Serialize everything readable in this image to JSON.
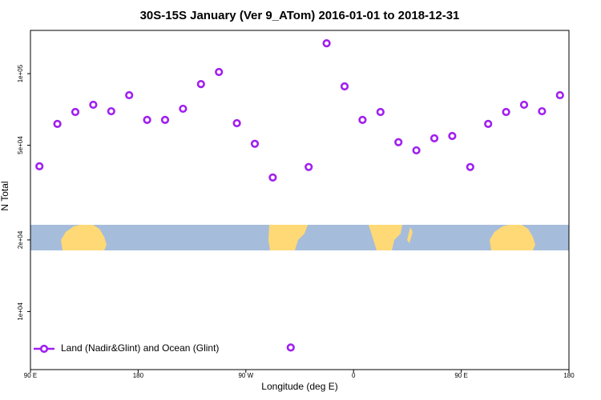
{
  "chart_data": {
    "type": "scatter",
    "title": "30S-15S January (Ver 9_ATom)   2016-01-01 to 2018-12-31",
    "x_label": "Longitude (deg E)",
    "y_label": "N Total",
    "xlim": [
      90,
      540
    ],
    "xticks": [
      {
        "value": 90,
        "label": "90 E"
      },
      180,
      {
        "value": 270,
        "label": "90 W"
      },
      {
        "value": 360,
        "label": "0"
      },
      {
        "value": 450,
        "label": "90 E"
      },
      {
        "value": 540,
        "label": "180"
      }
    ],
    "ylim": [
      5700,
      152000
    ],
    "yscale": "log",
    "yticks": [
      {
        "value": 10000,
        "label": "1e+04"
      },
      {
        "value": 20000,
        "label": "2e+04"
      },
      {
        "value": 50000,
        "label": "5e+04"
      },
      {
        "value": 100000,
        "label": "1e+05"
      }
    ],
    "legend_position": "bottom-left",
    "series": [
      {
        "name": "Land (Nadir&Glint) and Ocean (Glint)",
        "color": "#a020f0",
        "x": [
          97.5,
          112.5,
          127.5,
          142.5,
          157.5,
          172.5,
          187.5,
          202.5,
          217.5,
          232.5,
          247.5,
          262.5,
          277.5,
          292.5,
          307.5,
          322.5,
          337.5,
          352.5,
          367.5,
          382.5,
          397.5,
          412.5,
          427.5,
          442.5,
          457.5,
          472.5,
          487.5,
          502.5,
          517.5,
          532.5
        ],
        "values": [
          40800,
          61500,
          69000,
          74000,
          69500,
          81200,
          63900,
          63900,
          71200,
          90400,
          101600,
          61900,
          50700,
          36600,
          7060,
          40500,
          134200,
          88400,
          63900,
          69000,
          51500,
          47600,
          53500,
          54700,
          40500,
          61500,
          69000,
          74000,
          69500,
          81200
        ]
      }
    ]
  }
}
